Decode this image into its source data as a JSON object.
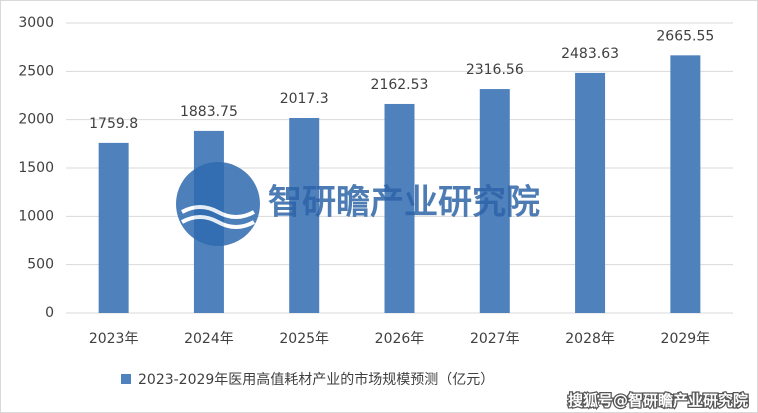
{
  "chart_data": {
    "type": "bar",
    "categories": [
      "2023年",
      "2024年",
      "2025年",
      "2026年",
      "2027年",
      "2028年",
      "2029年"
    ],
    "series": [
      {
        "name": "2023-2029年医用高值耗材产业的市场规模预测（亿元）",
        "color": "#4f81bd",
        "values": [
          1759.8,
          1883.75,
          2017.3,
          2162.53,
          2316.56,
          2483.63,
          2665.55
        ]
      }
    ],
    "ylim": [
      0,
      3000
    ],
    "yticks": [
      0,
      500,
      1000,
      1500,
      2000,
      2500,
      3000
    ],
    "grid": true,
    "legend": "bottom"
  },
  "watermark": "智研瞻产业研究院",
  "credit": "搜狐号@智研瞻产业研究院"
}
